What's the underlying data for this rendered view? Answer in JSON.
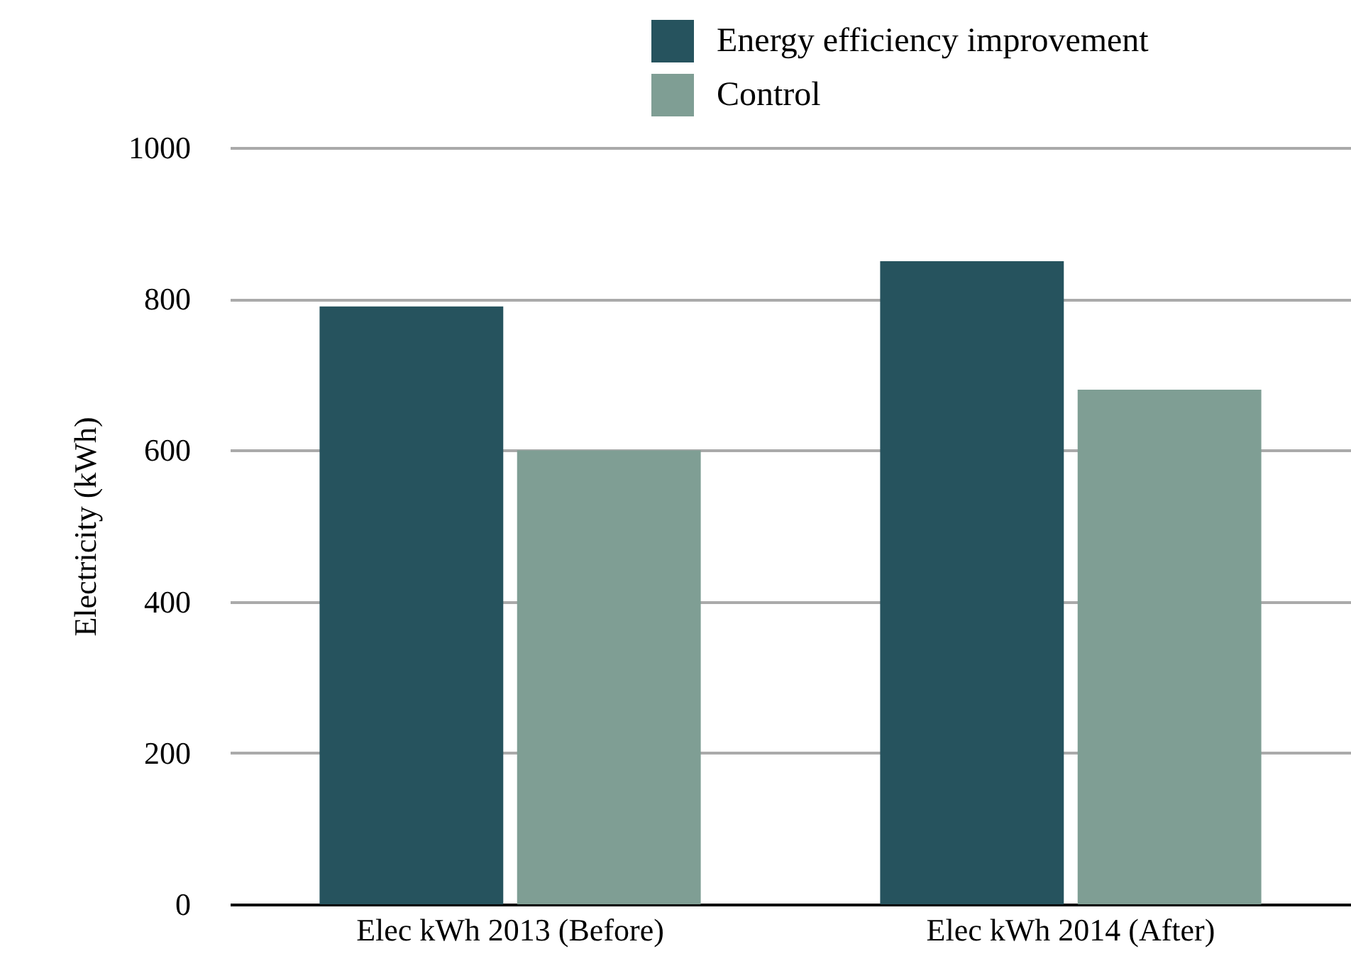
{
  "chart_data": {
    "type": "bar",
    "ylabel": "Electricity (kWh)",
    "categories": [
      "Elec kWh 2013 (Before)",
      "Elec kWh 2014 (After)"
    ],
    "series": [
      {
        "name": "Energy efficiency improvement",
        "color": "#26535e",
        "values": [
          790,
          850
        ]
      },
      {
        "name": "Control",
        "color": "#7f9e94",
        "values": [
          600,
          680
        ]
      }
    ],
    "ylim": [
      0,
      1000
    ],
    "yticks": [
      0,
      200,
      400,
      600,
      800,
      1000
    ],
    "grid": "y",
    "legend": "top right"
  }
}
